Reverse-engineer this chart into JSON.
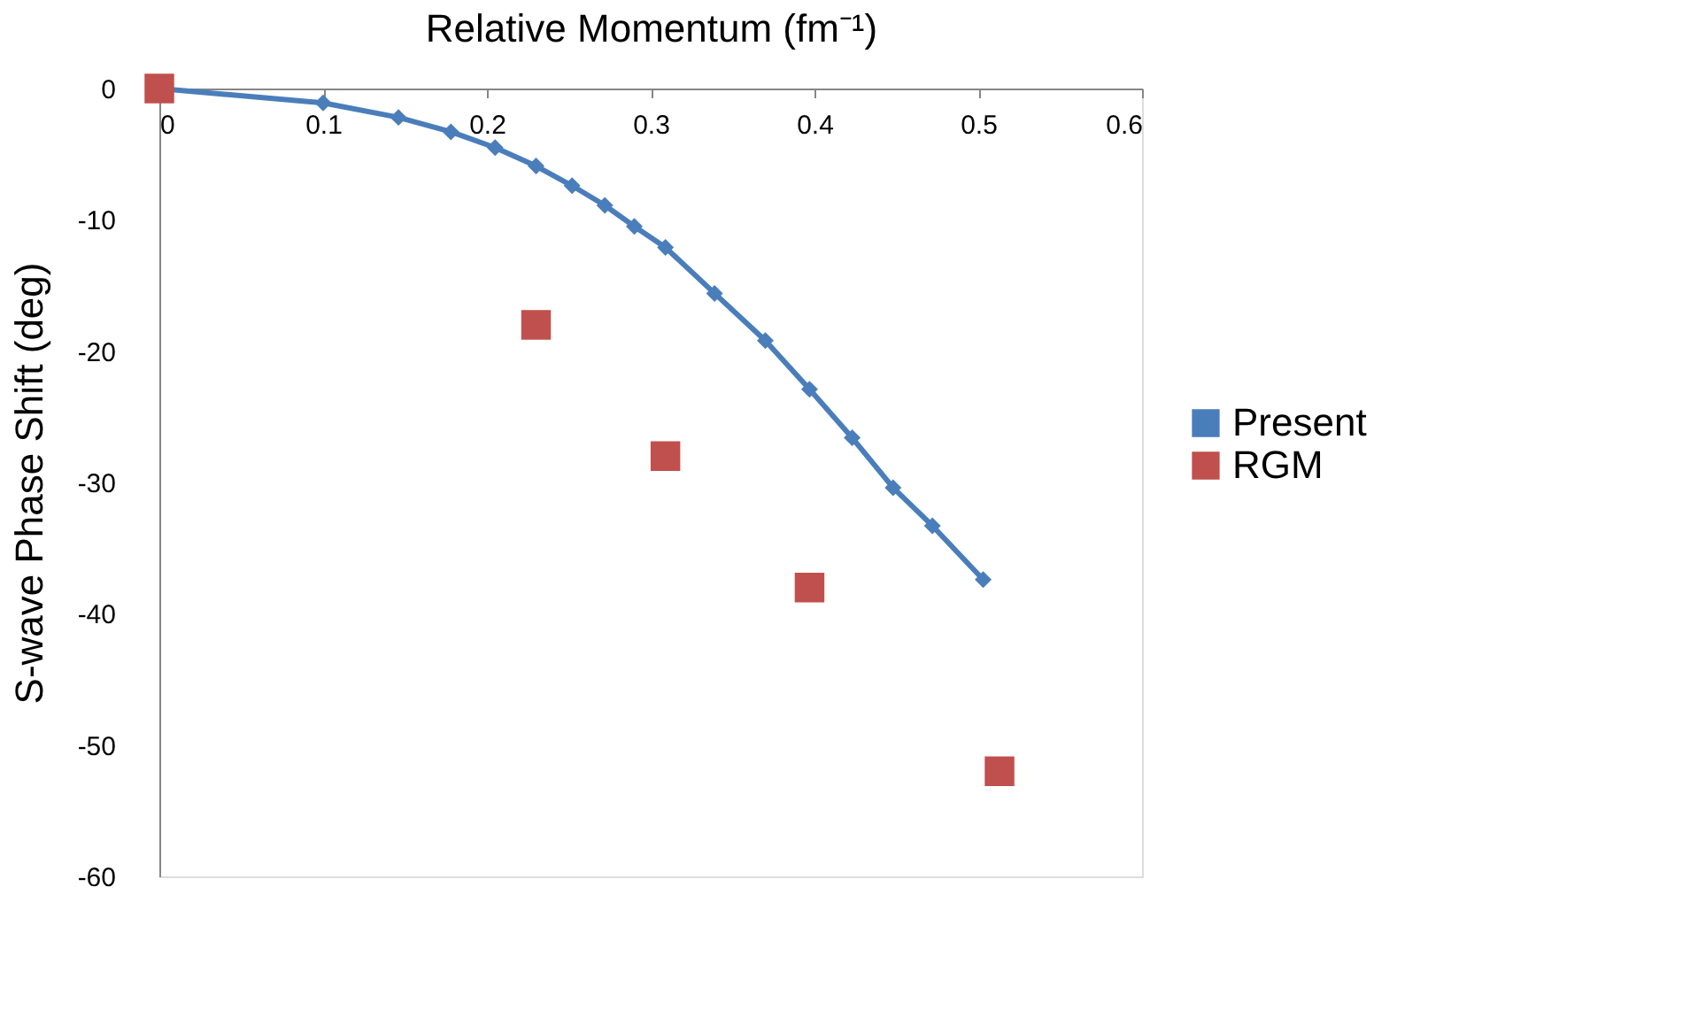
{
  "chart_data": {
    "type": "line",
    "xlabel": "Relative Momentum (fm⁻¹)",
    "ylabel": "S-wave Phase Shift (deg)",
    "xlim": [
      0,
      0.6
    ],
    "xticks": [
      0,
      0.1,
      0.2,
      0.3,
      0.4,
      0.5,
      0.6
    ],
    "ylim": [
      -60,
      0
    ],
    "yticks": [
      -60,
      -50,
      -40,
      -30,
      -20,
      -10,
      0
    ],
    "grid": false,
    "legend": "right",
    "series": [
      {
        "name": "Present",
        "marker": "diamond",
        "color": "#4a7ebb",
        "x": [
          0,
          0.1,
          0.146,
          0.178,
          0.205,
          0.23,
          0.252,
          0.272,
          0.29,
          0.309,
          0.339,
          0.37,
          0.397,
          0.423,
          0.448,
          0.472,
          0.503
        ],
        "values": [
          0,
          -1.1,
          -2.2,
          -3.3,
          -4.5,
          -5.9,
          -7.4,
          -8.9,
          -10.5,
          -12.1,
          -15.6,
          -19.2,
          -22.9,
          -26.6,
          -30.4,
          -33.3,
          -37.4
        ]
      },
      {
        "name": "RGM",
        "type": "scatter",
        "marker": "square",
        "color": "#c0504d",
        "x": [
          0,
          0.23,
          0.309,
          0.397,
          0.513
        ],
        "values": [
          0,
          -18,
          -28,
          -38,
          -52
        ]
      }
    ]
  }
}
